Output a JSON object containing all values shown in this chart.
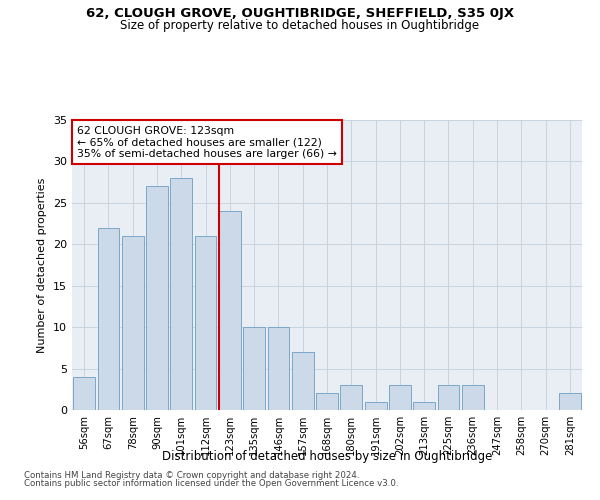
{
  "title1": "62, CLOUGH GROVE, OUGHTIBRIDGE, SHEFFIELD, S35 0JX",
  "title2": "Size of property relative to detached houses in Oughtibridge",
  "xlabel": "Distribution of detached houses by size in Oughtibridge",
  "ylabel": "Number of detached properties",
  "categories": [
    "56sqm",
    "67sqm",
    "78sqm",
    "90sqm",
    "101sqm",
    "112sqm",
    "123sqm",
    "135sqm",
    "146sqm",
    "157sqm",
    "168sqm",
    "180sqm",
    "191sqm",
    "202sqm",
    "213sqm",
    "225sqm",
    "236sqm",
    "247sqm",
    "258sqm",
    "270sqm",
    "281sqm"
  ],
  "values": [
    4,
    22,
    21,
    27,
    28,
    21,
    24,
    10,
    10,
    7,
    2,
    3,
    1,
    3,
    1,
    3,
    3,
    0,
    0,
    0,
    2
  ],
  "bar_color": "#ccd9e8",
  "bar_edge_color": "#7ba7c9",
  "property_label": "62 CLOUGH GROVE: 123sqm",
  "annotation_line1": "← 65% of detached houses are smaller (122)",
  "annotation_line2": "35% of semi-detached houses are larger (66) →",
  "vline_index": 6,
  "vline_color": "#cc0000",
  "annotation_box_edgecolor": "#cc0000",
  "ylim": [
    0,
    35
  ],
  "yticks": [
    0,
    5,
    10,
    15,
    20,
    25,
    30,
    35
  ],
  "grid_color": "#c8d4e0",
  "bg_color": "#e8eef4",
  "footnote1": "Contains HM Land Registry data © Crown copyright and database right 2024.",
  "footnote2": "Contains public sector information licensed under the Open Government Licence v3.0."
}
